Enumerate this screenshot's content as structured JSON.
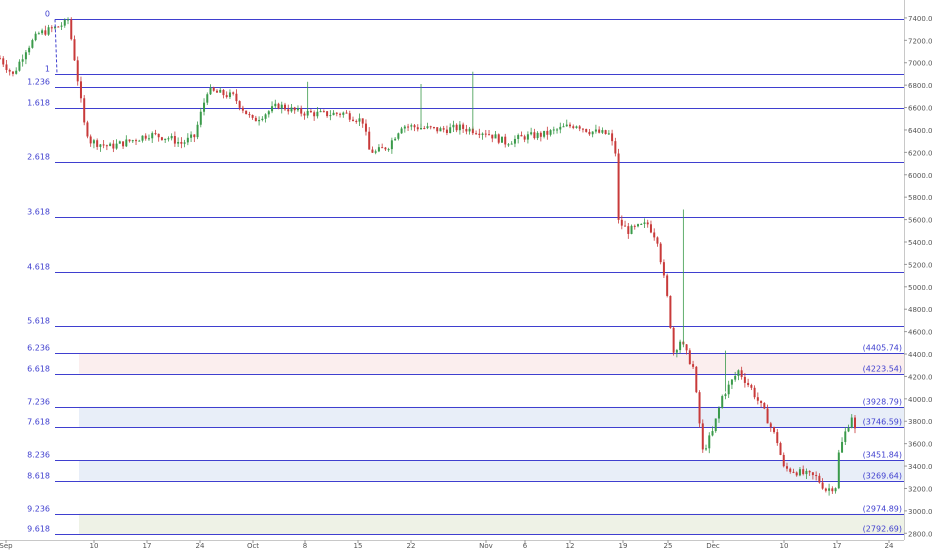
{
  "chart_data": {
    "type": "candlestick",
    "instrument_note": "",
    "x_ticks": [
      "Sep",
      "10",
      "17",
      "24",
      "Oct",
      "8",
      "15",
      "22",
      "Nov",
      "6",
      "12",
      "19",
      "25",
      "Dec",
      "10",
      "17",
      "24"
    ],
    "y_ticks": [
      "7400.00",
      "7200.00",
      "7000.00",
      "6800.00",
      "6600.00",
      "6400.00",
      "6200.00",
      "6000.00",
      "5800.00",
      "5600.00",
      "5400.00",
      "5200.00",
      "5000.00",
      "4800.00",
      "4600.00",
      "4400.00",
      "4200.00",
      "4000.00",
      "3800.00",
      "3600.00",
      "3400.00",
      "3200.00",
      "3000.00",
      "2800.00"
    ],
    "ylim": [
      2740,
      7560
    ],
    "fib_levels": [
      {
        "ratio": "0",
        "price": 7387
      },
      {
        "ratio": "1",
        "price": 6899
      },
      {
        "ratio": "1.236",
        "price": 6784
      },
      {
        "ratio": "1.618",
        "price": 6598
      },
      {
        "ratio": "2.618",
        "price": 6110
      },
      {
        "ratio": "3.618",
        "price": 5622
      },
      {
        "ratio": "4.618",
        "price": 5134
      },
      {
        "ratio": "5.618",
        "price": 4646
      },
      {
        "ratio": "6.236",
        "price": 4405.74,
        "value_label": "(4405.74)"
      },
      {
        "ratio": "6.618",
        "price": 4223.54,
        "value_label": "(4223.54)"
      },
      {
        "ratio": "7.236",
        "price": 3928.79,
        "value_label": "(3928.79)"
      },
      {
        "ratio": "7.618",
        "price": 3746.59,
        "value_label": "(3746.59)"
      },
      {
        "ratio": "8.236",
        "price": 3451.84,
        "value_label": "(3451.84)"
      },
      {
        "ratio": "8.618",
        "price": 3269.64,
        "value_label": "(3269.64)"
      },
      {
        "ratio": "9.236",
        "price": 2974.89,
        "value_label": "(2974.89)"
      },
      {
        "ratio": "9.618",
        "price": 2792.69,
        "value_label": "(2792.69)"
      }
    ],
    "zones": [
      {
        "from": 4405.74,
        "to": 4223.54,
        "color": "#fbeeee"
      },
      {
        "from": 3928.79,
        "to": 3746.59,
        "color": "#e8eef8"
      },
      {
        "from": 3451.84,
        "to": 3269.64,
        "color": "#e8eef8"
      },
      {
        "from": 2974.89,
        "to": 2792.69,
        "color": "#eef2e6"
      }
    ],
    "price_path": [
      [
        0,
        7040
      ],
      [
        4,
        6890
      ],
      [
        8,
        7120
      ],
      [
        12,
        7260
      ],
      [
        16,
        7300
      ],
      [
        20,
        7350
      ],
      [
        21,
        7387
      ],
      [
        23,
        7040
      ],
      [
        24,
        6850
      ],
      [
        26,
        6450
      ],
      [
        28,
        6300
      ],
      [
        34,
        6250
      ],
      [
        40,
        6300
      ],
      [
        46,
        6360
      ],
      [
        52,
        6330
      ],
      [
        56,
        6280
      ],
      [
        60,
        6340
      ],
      [
        64,
        6750
      ],
      [
        72,
        6700
      ],
      [
        78,
        6480
      ],
      [
        86,
        6620
      ],
      [
        92,
        6560
      ],
      [
        100,
        6540
      ],
      [
        106,
        6550
      ],
      [
        112,
        6480
      ],
      [
        114,
        6220
      ],
      [
        116,
        6200
      ],
      [
        120,
        6260
      ],
      [
        124,
        6440
      ],
      [
        130,
        6420
      ],
      [
        136,
        6400
      ],
      [
        142,
        6420
      ],
      [
        150,
        6380
      ],
      [
        156,
        6290
      ],
      [
        162,
        6340
      ],
      [
        168,
        6360
      ],
      [
        174,
        6420
      ],
      [
        178,
        6450
      ],
      [
        182,
        6390
      ],
      [
        188,
        6360
      ],
      [
        190,
        6200
      ],
      [
        191,
        5580
      ],
      [
        194,
        5500
      ],
      [
        200,
        5560
      ],
      [
        203,
        5420
      ],
      [
        206,
        4900
      ],
      [
        208,
        4420
      ],
      [
        210,
        4520
      ],
      [
        214,
        4280
      ],
      [
        217,
        3530
      ],
      [
        220,
        3700
      ],
      [
        223,
        4020
      ],
      [
        228,
        4250
      ],
      [
        232,
        4090
      ],
      [
        236,
        3880
      ],
      [
        240,
        3620
      ],
      [
        242,
        3380
      ],
      [
        245,
        3360
      ],
      [
        248,
        3330
      ],
      [
        252,
        3300
      ],
      [
        255,
        3190
      ],
      [
        258,
        3220
      ],
      [
        259,
        3510
      ],
      [
        261,
        3700
      ],
      [
        263,
        3850
      ],
      [
        264,
        3720
      ]
    ],
    "path_x_domain": [
      0,
      300
    ]
  }
}
